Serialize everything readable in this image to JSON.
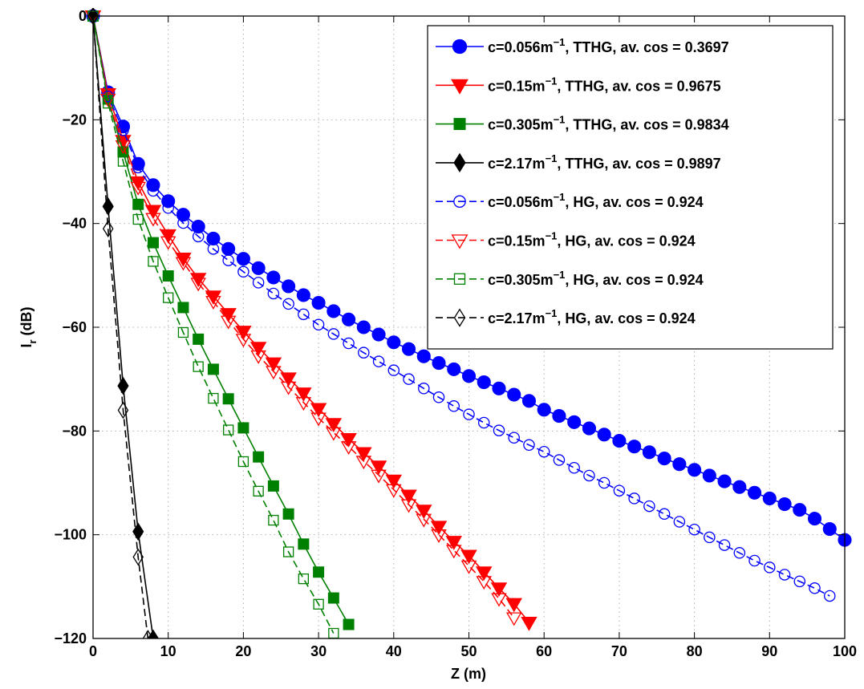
{
  "chart_data": {
    "type": "line",
    "xlabel": "Z (m)",
    "ylabel_main": "I",
    "ylabel_sub": "r",
    "ylabel_rest": " (dB)",
    "xlim": [
      0,
      100
    ],
    "ylim": [
      -120,
      0
    ],
    "xticks": [
      "0",
      "10",
      "20",
      "30",
      "40",
      "50",
      "60",
      "70",
      "80",
      "90",
      "100"
    ],
    "yticks": [
      "0",
      "−20",
      "−40",
      "−60",
      "−80",
      "−100",
      "−120"
    ],
    "grid": true,
    "legend_position": "top-right",
    "series": [
      {
        "name_pre": "c=0.056m",
        "name_sup": "−1",
        "name_post": ", TTHG, av. cos  = 0.3697",
        "color": "#0000ff",
        "line": "solid",
        "marker": "circle",
        "filled": true,
        "points": [
          [
            0,
            0
          ],
          [
            2,
            -14.7
          ],
          [
            4,
            -21.3
          ],
          [
            6,
            -28.5
          ],
          [
            8,
            -32.6
          ],
          [
            10,
            -35.7
          ],
          [
            12,
            -38.3
          ],
          [
            14,
            -40.6
          ],
          [
            16,
            -42.9
          ],
          [
            18,
            -44.9
          ],
          [
            20,
            -46.8
          ],
          [
            22,
            -48.6
          ],
          [
            24,
            -50.4
          ],
          [
            26,
            -52.1
          ],
          [
            28,
            -53.8
          ],
          [
            30,
            -55.3
          ],
          [
            32,
            -56.9
          ],
          [
            34,
            -58.5
          ],
          [
            36,
            -60.0
          ],
          [
            38,
            -61.4
          ],
          [
            40,
            -62.9
          ],
          [
            42,
            -64.2
          ],
          [
            44,
            -65.6
          ],
          [
            46,
            -66.9
          ],
          [
            48,
            -68.1
          ],
          [
            50,
            -69.4
          ],
          [
            52,
            -70.6
          ],
          [
            54,
            -71.8
          ],
          [
            56,
            -73.0
          ],
          [
            58,
            -74.2
          ],
          [
            60,
            -75.9
          ],
          [
            62,
            -77.1
          ],
          [
            64,
            -78.3
          ],
          [
            66,
            -79.5
          ],
          [
            68,
            -80.7
          ],
          [
            70,
            -81.9
          ],
          [
            72,
            -83.0
          ],
          [
            74,
            -84.1
          ],
          [
            76,
            -85.3
          ],
          [
            78,
            -86.4
          ],
          [
            80,
            -87.5
          ],
          [
            82,
            -88.6
          ],
          [
            84,
            -89.7
          ],
          [
            86,
            -90.8
          ],
          [
            88,
            -91.9
          ],
          [
            90,
            -93.0
          ],
          [
            92,
            -94.1
          ],
          [
            94,
            -95.2
          ],
          [
            96,
            -96.9
          ],
          [
            98,
            -98.9
          ],
          [
            100,
            -101.0
          ]
        ]
      },
      {
        "name_pre": "c=0.15m",
        "name_sup": "−1",
        "name_post": ", TTHG, av. cos  = 0.9675",
        "color": "#ff0000",
        "line": "solid",
        "marker": "triangle-down",
        "filled": true,
        "points": [
          [
            0,
            0
          ],
          [
            2,
            -15.0
          ],
          [
            4,
            -24.0
          ],
          [
            6,
            -32.0
          ],
          [
            8,
            -37.5
          ],
          [
            10,
            -42.2
          ],
          [
            12,
            -46.7
          ],
          [
            14,
            -50.6
          ],
          [
            16,
            -54.0
          ],
          [
            18,
            -57.4
          ],
          [
            20,
            -60.8
          ],
          [
            22,
            -63.9
          ],
          [
            24,
            -66.9
          ],
          [
            26,
            -69.8
          ],
          [
            28,
            -72.7
          ],
          [
            30,
            -75.7
          ],
          [
            32,
            -78.6
          ],
          [
            34,
            -81.5
          ],
          [
            36,
            -84.2
          ],
          [
            38,
            -86.8
          ],
          [
            40,
            -89.5
          ],
          [
            42,
            -92.4
          ],
          [
            44,
            -95.3
          ],
          [
            46,
            -98.4
          ],
          [
            48,
            -101.3
          ],
          [
            50,
            -104.0
          ],
          [
            52,
            -107.2
          ],
          [
            54,
            -110.3
          ],
          [
            56,
            -113.3
          ],
          [
            58,
            -116.9
          ]
        ]
      },
      {
        "name_pre": "c=0.305m",
        "name_sup": "−1",
        "name_post": ", TTHG, av. cos  = 0.9834",
        "color": "#008000",
        "line": "solid",
        "marker": "square",
        "filled": true,
        "points": [
          [
            0,
            0
          ],
          [
            2,
            -16.0
          ],
          [
            4,
            -26.2
          ],
          [
            6,
            -36.3
          ],
          [
            8,
            -43.7
          ],
          [
            10,
            -50.1
          ],
          [
            12,
            -56.2
          ],
          [
            14,
            -62.3
          ],
          [
            16,
            -68.1
          ],
          [
            18,
            -73.8
          ],
          [
            20,
            -79.4
          ],
          [
            22,
            -85.0
          ],
          [
            24,
            -90.6
          ],
          [
            26,
            -96.0
          ],
          [
            28,
            -101.8
          ],
          [
            30,
            -107.2
          ],
          [
            32,
            -112.2
          ],
          [
            34,
            -117.3
          ]
        ]
      },
      {
        "name_pre": "c=2.17m",
        "name_sup": "−1",
        "name_post": ", TTHG, av. cos  = 0.9897",
        "color": "#000000",
        "line": "solid",
        "marker": "diamond",
        "filled": true,
        "points": [
          [
            0,
            0
          ],
          [
            2,
            -36.7
          ],
          [
            4,
            -71.3
          ],
          [
            6,
            -99.4
          ],
          [
            8,
            -120.0
          ]
        ]
      },
      {
        "name_pre": "c=0.056m",
        "name_sup": "−1",
        "name_post": ", HG, av. cos  = 0.924",
        "color": "#0000ff",
        "line": "dashed",
        "marker": "circle",
        "filled": false,
        "points": [
          [
            0,
            0
          ],
          [
            2,
            -15.5
          ],
          [
            4,
            -22.0
          ],
          [
            6,
            -29.2
          ],
          [
            8,
            -33.7
          ],
          [
            10,
            -37.0
          ],
          [
            12,
            -39.9
          ],
          [
            14,
            -42.5
          ],
          [
            16,
            -44.9
          ],
          [
            18,
            -47.1
          ],
          [
            20,
            -49.3
          ],
          [
            22,
            -51.4
          ],
          [
            24,
            -53.5
          ],
          [
            26,
            -55.5
          ],
          [
            28,
            -57.5
          ],
          [
            30,
            -59.5
          ],
          [
            32,
            -61.3
          ],
          [
            34,
            -63.1
          ],
          [
            36,
            -64.9
          ],
          [
            38,
            -66.6
          ],
          [
            40,
            -68.3
          ],
          [
            42,
            -70.0
          ],
          [
            44,
            -71.8
          ],
          [
            46,
            -73.5
          ],
          [
            48,
            -75.2
          ],
          [
            50,
            -76.8
          ],
          [
            52,
            -78.4
          ],
          [
            54,
            -79.9
          ],
          [
            56,
            -81.3
          ],
          [
            58,
            -82.7
          ],
          [
            60,
            -84.0
          ],
          [
            62,
            -85.6
          ],
          [
            64,
            -87.1
          ],
          [
            66,
            -88.6
          ],
          [
            68,
            -90.0
          ],
          [
            70,
            -91.5
          ],
          [
            72,
            -93.0
          ],
          [
            74,
            -94.5
          ],
          [
            76,
            -96.0
          ],
          [
            78,
            -97.5
          ],
          [
            80,
            -99.0
          ],
          [
            82,
            -100.5
          ],
          [
            84,
            -102.0
          ],
          [
            86,
            -103.5
          ],
          [
            88,
            -105.0
          ],
          [
            90,
            -106.3
          ],
          [
            92,
            -107.7
          ],
          [
            94,
            -109.0
          ],
          [
            96,
            -110.3
          ],
          [
            98,
            -111.8
          ]
        ]
      },
      {
        "name_pre": "c=0.15m",
        "name_sup": "−1",
        "name_post": ", HG, av. cos  = 0.924",
        "color": "#ff0000",
        "line": "dashed",
        "marker": "triangle-down",
        "filled": false,
        "points": [
          [
            0,
            0
          ],
          [
            2,
            -16.0
          ],
          [
            4,
            -25.0
          ],
          [
            6,
            -33.0
          ],
          [
            8,
            -39.0
          ],
          [
            10,
            -43.5
          ],
          [
            12,
            -47.5
          ],
          [
            14,
            -51.5
          ],
          [
            16,
            -55.0
          ],
          [
            18,
            -58.8
          ],
          [
            20,
            -62.3
          ],
          [
            22,
            -65.5
          ],
          [
            24,
            -68.5
          ],
          [
            26,
            -71.5
          ],
          [
            28,
            -74.5
          ],
          [
            30,
            -77.5
          ],
          [
            32,
            -80.3
          ],
          [
            34,
            -83.0
          ],
          [
            36,
            -85.8
          ],
          [
            38,
            -88.5
          ],
          [
            40,
            -91.3
          ],
          [
            42,
            -94.2
          ],
          [
            44,
            -97.0
          ],
          [
            46,
            -100.0
          ],
          [
            48,
            -103.0
          ],
          [
            50,
            -106.0
          ],
          [
            52,
            -109.0
          ],
          [
            54,
            -112.3
          ],
          [
            56,
            -116.0
          ]
        ]
      },
      {
        "name_pre": "c=0.305m",
        "name_sup": "−1",
        "name_post": ", HG, av. cos  = 0.924",
        "color": "#008000",
        "line": "dashed",
        "marker": "square",
        "filled": false,
        "points": [
          [
            0,
            0
          ],
          [
            2,
            -16.8
          ],
          [
            4,
            -28.0
          ],
          [
            6,
            -39.2
          ],
          [
            8,
            -47.3
          ],
          [
            10,
            -54.3
          ],
          [
            12,
            -61.0
          ],
          [
            14,
            -67.6
          ],
          [
            16,
            -73.7
          ],
          [
            18,
            -79.8
          ],
          [
            20,
            -85.9
          ],
          [
            22,
            -91.6
          ],
          [
            24,
            -97.2
          ],
          [
            26,
            -103.3
          ],
          [
            28,
            -108.5
          ],
          [
            30,
            -113.4
          ],
          [
            32,
            -119.0
          ]
        ]
      },
      {
        "name_pre": "c=2.17m",
        "name_sup": "−1",
        "name_post": ", HG, av. cos  = 0.924",
        "color": "#000000",
        "line": "dashed",
        "marker": "diamond",
        "filled": false,
        "points": [
          [
            0,
            0
          ],
          [
            2,
            -41.0
          ],
          [
            4,
            -76.0
          ],
          [
            6,
            -104.3
          ],
          [
            7.3,
            -120.0
          ]
        ]
      }
    ]
  }
}
